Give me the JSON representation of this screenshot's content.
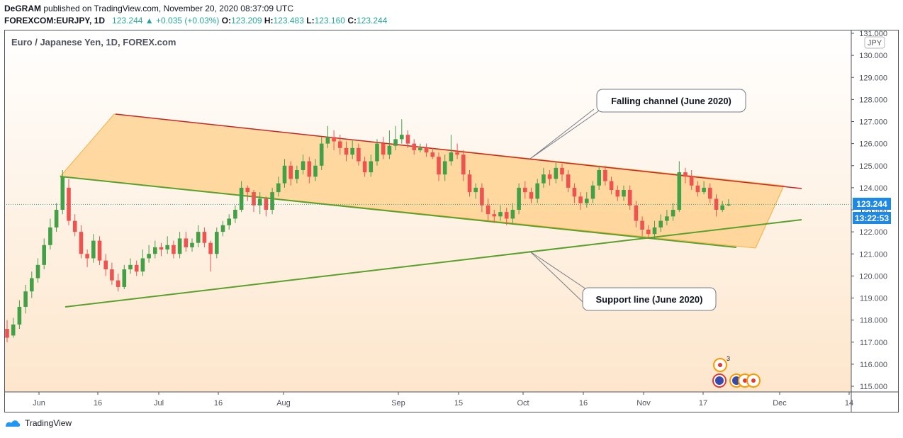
{
  "header": {
    "publisher_line": "DeGRAM published on TradingView.com, November 20, 2020 08:37:09 UTC",
    "publisher": "DeGRAM",
    "symbol": "FOREXCOM:EURJPY, 1D",
    "last": "123.244",
    "change": "+0.035 (+0.03%)",
    "open_label": "O:",
    "open": "123.209",
    "high_label": "H:",
    "high": "123.483",
    "low_label": "L:",
    "low": "123.160",
    "close_label": "C:",
    "close": "123.244"
  },
  "chart_title": "Euro / Japanese Yen, 1D, FOREX.com",
  "currency_badge": "JPY",
  "price_label": "123.244",
  "countdown_label": "13:22:53",
  "annotations": {
    "channel": "Falling channel (June 2020)",
    "support": "Support line (June 2020)"
  },
  "event_badge_count": "3",
  "footer_brand": "TradingView",
  "colors": {
    "up": "#43a047",
    "down": "#ef5350",
    "channel_fill": "#ffcc80",
    "upper_line": "#c62828",
    "lower_line": "#5aa02c",
    "price_tag": "#1e88e5"
  },
  "chart_data": {
    "type": "candlestick",
    "title": "Euro / Japanese Yen, 1D, FOREX.com",
    "ylim": [
      114.7,
      131.1
    ],
    "y_ticks": [
      "115.000",
      "116.000",
      "117.000",
      "118.000",
      "119.000",
      "120.000",
      "121.000",
      "122.000",
      "123.000",
      "124.000",
      "125.000",
      "126.000",
      "127.000",
      "128.000",
      "129.000",
      "130.000",
      "131.000"
    ],
    "x_ticks": [
      "Jun",
      "16",
      "Jul",
      "16",
      "Aug",
      "Sep",
      "15",
      "Oct",
      "16",
      "Nov",
      "17",
      "Dec",
      "14"
    ],
    "candles": [
      [
        117.6,
        117.2,
        118.0,
        117.0
      ],
      [
        117.3,
        117.8,
        118.1,
        117.2
      ],
      [
        117.8,
        118.6,
        118.9,
        117.6
      ],
      [
        118.6,
        119.3,
        119.6,
        118.3
      ],
      [
        119.3,
        119.9,
        120.2,
        119.0
      ],
      [
        119.9,
        120.5,
        120.8,
        119.7
      ],
      [
        120.5,
        121.4,
        121.7,
        120.3
      ],
      [
        121.4,
        122.2,
        122.6,
        121.2
      ],
      [
        122.2,
        123.0,
        123.3,
        122.0
      ],
      [
        123.0,
        124.5,
        124.8,
        122.8
      ],
      [
        124.0,
        122.5,
        124.4,
        122.3
      ],
      [
        122.5,
        122.0,
        122.8,
        121.8
      ],
      [
        122.0,
        121.0,
        122.3,
        120.8
      ],
      [
        121.0,
        120.8,
        121.2,
        120.4
      ],
      [
        120.8,
        121.6,
        121.9,
        120.6
      ],
      [
        121.6,
        120.7,
        121.8,
        120.5
      ],
      [
        120.7,
        120.3,
        121.0,
        120.0
      ],
      [
        120.3,
        119.8,
        120.6,
        119.6
      ],
      [
        119.8,
        119.5,
        120.1,
        119.3
      ],
      [
        119.5,
        120.3,
        120.5,
        119.4
      ],
      [
        120.3,
        120.5,
        120.8,
        120.1
      ],
      [
        120.5,
        120.2,
        120.7,
        120.0
      ],
      [
        120.2,
        120.8,
        121.2,
        120.0
      ],
      [
        120.8,
        121.0,
        121.4,
        120.6
      ],
      [
        121.0,
        121.3,
        121.6,
        120.8
      ],
      [
        121.3,
        121.2,
        121.5,
        120.9
      ],
      [
        121.2,
        121.4,
        121.8,
        121.0
      ],
      [
        121.4,
        121.0,
        121.6,
        120.8
      ],
      [
        121.0,
        121.7,
        122.0,
        120.8
      ],
      [
        121.7,
        121.3,
        122.0,
        121.1
      ],
      [
        121.3,
        121.5,
        121.7,
        121.1
      ],
      [
        121.5,
        122.0,
        122.3,
        121.3
      ],
      [
        122.0,
        121.5,
        122.2,
        121.3
      ],
      [
        121.5,
        121.0,
        121.6,
        120.2
      ],
      [
        121.0,
        122.0,
        122.2,
        120.8
      ],
      [
        122.0,
        122.3,
        122.5,
        121.8
      ],
      [
        122.3,
        122.6,
        122.8,
        122.1
      ],
      [
        122.6,
        123.0,
        123.2,
        122.4
      ],
      [
        123.0,
        124.0,
        124.3,
        122.9
      ],
      [
        124.0,
        123.8,
        124.1,
        123.4
      ],
      [
        123.8,
        123.2,
        123.9,
        122.9
      ],
      [
        123.2,
        123.5,
        123.8,
        122.8
      ],
      [
        123.5,
        123.0,
        123.6,
        122.7
      ],
      [
        123.0,
        123.8,
        124.0,
        122.8
      ],
      [
        123.8,
        124.2,
        124.5,
        123.6
      ],
      [
        124.2,
        125.0,
        125.3,
        124.0
      ],
      [
        125.0,
        124.4,
        125.2,
        124.1
      ],
      [
        124.4,
        124.8,
        125.0,
        124.2
      ],
      [
        124.8,
        125.2,
        125.5,
        124.6
      ],
      [
        125.2,
        124.5,
        125.4,
        124.2
      ],
      [
        124.5,
        125.0,
        125.3,
        124.3
      ],
      [
        125.0,
        126.0,
        126.3,
        124.8
      ],
      [
        126.0,
        126.3,
        126.8,
        125.8
      ],
      [
        126.3,
        126.1,
        126.6,
        125.7
      ],
      [
        126.1,
        125.8,
        126.4,
        125.5
      ],
      [
        125.8,
        125.5,
        126.1,
        125.2
      ],
      [
        125.5,
        125.8,
        126.2,
        125.3
      ],
      [
        125.8,
        125.2,
        126.0,
        125.0
      ],
      [
        125.2,
        124.7,
        125.4,
        124.5
      ],
      [
        124.7,
        125.2,
        125.5,
        124.5
      ],
      [
        125.2,
        126.0,
        126.2,
        125.0
      ],
      [
        126.0,
        125.5,
        126.3,
        125.3
      ],
      [
        125.5,
        125.9,
        126.6,
        125.3
      ],
      [
        125.9,
        126.2,
        126.8,
        125.7
      ],
      [
        126.2,
        126.4,
        127.1,
        126.0
      ],
      [
        126.4,
        126.0,
        126.6,
        125.8
      ],
      [
        126.0,
        125.7,
        126.2,
        125.5
      ],
      [
        125.7,
        125.8,
        126.0,
        125.6
      ],
      [
        125.8,
        125.6,
        126.0,
        125.4
      ],
      [
        125.6,
        125.4,
        125.8,
        125.3
      ],
      [
        125.4,
        124.6,
        125.6,
        124.3
      ],
      [
        124.6,
        125.2,
        125.5,
        124.3
      ],
      [
        125.2,
        125.6,
        126.4,
        125.0
      ],
      [
        125.6,
        125.5,
        126.0,
        125.3
      ],
      [
        125.5,
        124.6,
        125.7,
        124.3
      ],
      [
        124.6,
        123.8,
        124.8,
        123.6
      ],
      [
        123.8,
        124.0,
        124.2,
        123.5
      ],
      [
        124.0,
        123.2,
        124.2,
        122.9
      ],
      [
        123.2,
        122.8,
        123.5,
        122.5
      ],
      [
        122.8,
        122.7,
        123.0,
        122.4
      ],
      [
        122.7,
        122.9,
        123.2,
        122.5
      ],
      [
        122.9,
        122.6,
        123.1,
        122.3
      ],
      [
        122.6,
        123.0,
        123.3,
        122.4
      ],
      [
        123.0,
        124.0,
        124.2,
        122.8
      ],
      [
        124.0,
        123.8,
        124.3,
        123.5
      ],
      [
        123.8,
        123.5,
        124.0,
        123.3
      ],
      [
        123.5,
        124.2,
        124.4,
        123.3
      ],
      [
        124.2,
        124.6,
        124.9,
        124.0
      ],
      [
        124.6,
        124.4,
        124.8,
        124.1
      ],
      [
        124.4,
        124.9,
        125.2,
        124.2
      ],
      [
        124.9,
        124.6,
        125.1,
        124.3
      ],
      [
        124.6,
        124.0,
        124.8,
        123.8
      ],
      [
        124.0,
        123.6,
        124.2,
        123.3
      ],
      [
        123.6,
        123.3,
        123.8,
        123.0
      ],
      [
        123.3,
        123.5,
        123.8,
        123.1
      ],
      [
        123.5,
        124.1,
        124.3,
        123.3
      ],
      [
        124.1,
        124.8,
        125.0,
        123.9
      ],
      [
        124.8,
        124.3,
        125.0,
        124.1
      ],
      [
        124.3,
        123.9,
        124.5,
        123.7
      ],
      [
        123.9,
        123.6,
        124.1,
        123.4
      ],
      [
        123.6,
        123.9,
        124.1,
        123.4
      ],
      [
        123.9,
        123.2,
        124.1,
        123.0
      ],
      [
        123.2,
        122.5,
        123.4,
        122.2
      ],
      [
        122.5,
        122.1,
        122.7,
        121.8
      ],
      [
        122.1,
        121.9,
        122.3,
        121.7
      ],
      [
        121.9,
        122.2,
        122.5,
        121.7
      ],
      [
        122.2,
        122.5,
        122.8,
        122.0
      ],
      [
        122.5,
        122.7,
        123.0,
        122.3
      ],
      [
        122.7,
        123.0,
        123.3,
        122.5
      ],
      [
        123.0,
        124.7,
        125.2,
        122.9
      ],
      [
        124.7,
        124.5,
        124.9,
        124.2
      ],
      [
        124.5,
        124.1,
        124.8,
        123.9
      ],
      [
        124.1,
        123.8,
        124.3,
        123.6
      ],
      [
        123.8,
        124.0,
        124.3,
        123.7
      ],
      [
        124.0,
        123.5,
        124.2,
        123.3
      ],
      [
        123.5,
        123.0,
        123.7,
        122.7
      ],
      [
        123.0,
        123.2,
        123.4,
        122.9
      ],
      [
        123.2,
        123.244,
        123.483,
        123.16
      ]
    ]
  }
}
